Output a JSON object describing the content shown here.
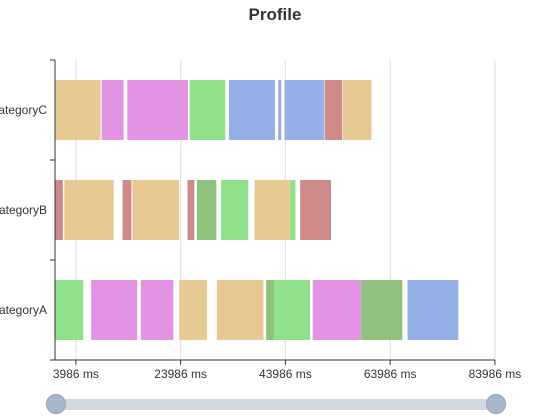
{
  "chart_data": {
    "type": "custom-profile-gantt",
    "title": "Profile",
    "categories": [
      "categoryA",
      "categoryB",
      "categoryC"
    ],
    "xlim": [
      0,
      84000
    ],
    "x_ticks": [
      3986,
      23986,
      43986,
      63986,
      83986
    ],
    "x_tick_labels": [
      "3986 ms",
      "23986 ms",
      "43986 ms",
      "63986 ms",
      "83986 ms"
    ],
    "colors": {
      "tan": "#e8c993",
      "pink": "#e293e4",
      "green": "#91e08c",
      "blue": "#95b0e7",
      "red": "#ce8a88",
      "darkgreen": "#8fc27f"
    },
    "series": [
      {
        "category": "categoryC",
        "segments": [
          {
            "start": 0,
            "end": 8700,
            "color": "tan"
          },
          {
            "start": 8900,
            "end": 13100,
            "color": "pink"
          },
          {
            "start": 13800,
            "end": 25400,
            "color": "pink"
          },
          {
            "start": 25700,
            "end": 32500,
            "color": "green"
          },
          {
            "start": 33200,
            "end": 42000,
            "color": "blue"
          },
          {
            "start": 42600,
            "end": 43200,
            "color": "blue"
          },
          {
            "start": 43800,
            "end": 51400,
            "color": "blue"
          },
          {
            "start": 51500,
            "end": 54800,
            "color": "red"
          },
          {
            "start": 54900,
            "end": 60400,
            "color": "tan"
          }
        ]
      },
      {
        "category": "categoryB",
        "segments": [
          {
            "start": 0,
            "end": 1500,
            "color": "red"
          },
          {
            "start": 1800,
            "end": 11200,
            "color": "tan"
          },
          {
            "start": 12900,
            "end": 14600,
            "color": "red"
          },
          {
            "start": 14800,
            "end": 23700,
            "color": "tan"
          },
          {
            "start": 25300,
            "end": 26600,
            "color": "red"
          },
          {
            "start": 27100,
            "end": 30800,
            "color": "darkgreen"
          },
          {
            "start": 31700,
            "end": 36900,
            "color": "green"
          },
          {
            "start": 38100,
            "end": 44900,
            "color": "tan"
          },
          {
            "start": 44900,
            "end": 45900,
            "color": "green"
          },
          {
            "start": 46800,
            "end": 52700,
            "color": "red"
          }
        ]
      },
      {
        "category": "categoryA",
        "segments": [
          {
            "start": 0,
            "end": 5400,
            "color": "green"
          },
          {
            "start": 6900,
            "end": 15700,
            "color": "pink"
          },
          {
            "start": 16400,
            "end": 22600,
            "color": "pink"
          },
          {
            "start": 23700,
            "end": 29000,
            "color": "tan"
          },
          {
            "start": 30900,
            "end": 39800,
            "color": "tan"
          },
          {
            "start": 40300,
            "end": 41800,
            "color": "darkgreen"
          },
          {
            "start": 41800,
            "end": 48700,
            "color": "green"
          },
          {
            "start": 49200,
            "end": 58400,
            "color": "pink"
          },
          {
            "start": 58400,
            "end": 66300,
            "color": "darkgreen"
          },
          {
            "start": 67300,
            "end": 77000,
            "color": "blue"
          }
        ]
      }
    ],
    "grid": true
  }
}
